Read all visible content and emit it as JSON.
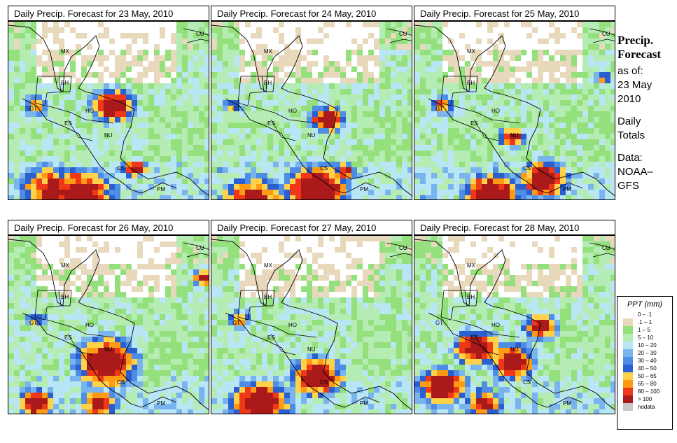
{
  "panels": [
    {
      "title": "Daily Precip. Forecast for  23 May, 2010",
      "id": "d23"
    },
    {
      "title": "Daily Precip. Forecast for  24 May, 2010",
      "id": "d24"
    },
    {
      "title": "Daily Precip. Forecast for  25 May, 2010",
      "id": "d25"
    },
    {
      "title": "Daily Precip. Forecast for  26 May, 2010",
      "id": "d26"
    },
    {
      "title": "Daily Precip. Forecast for  27 May, 2010",
      "id": "d27"
    },
    {
      "title": "Daily Precip. Forecast for  28 May, 2010",
      "id": "d28"
    }
  ],
  "country_labels": [
    "MX",
    "BH",
    "GT",
    "HO",
    "ES",
    "NU",
    "CS",
    "PM",
    "CU"
  ],
  "side": {
    "title_line1": "Precip.",
    "title_line2": "Forecast",
    "asof_line1": "as of:",
    "asof_line2": "23 May",
    "asof_line3": "2010",
    "totals_line1": "Daily",
    "totals_line2": "Totals",
    "data_line1": "Data:",
    "data_line2": "NOAA–",
    "data_line3": "GFS"
  },
  "legend": {
    "title": "PPT (mm)",
    "items": [
      {
        "label": "0 – .1",
        "color": "#ffffff"
      },
      {
        "label": ".1 – 1",
        "color": "#e8d9bd"
      },
      {
        "label": "1 – 5",
        "color": "#93e07c"
      },
      {
        "label": "5 – 10",
        "color": "#b4ecb4"
      },
      {
        "label": "10 – 20",
        "color": "#b9e6f5"
      },
      {
        "label": "20 – 30",
        "color": "#79b4ee"
      },
      {
        "label": "30 – 40",
        "color": "#4d8de6"
      },
      {
        "label": "40 – 50",
        "color": "#2a5fd0"
      },
      {
        "label": "50 – 65",
        "color": "#ffd24a"
      },
      {
        "label": "65 – 80",
        "color": "#ff9a14"
      },
      {
        "label": "80 – 100",
        "color": "#ee3818"
      },
      {
        "label": "> 100",
        "color": "#aa1a1a"
      },
      {
        "label": "nodata",
        "color": "#c8c8c8"
      }
    ]
  }
}
